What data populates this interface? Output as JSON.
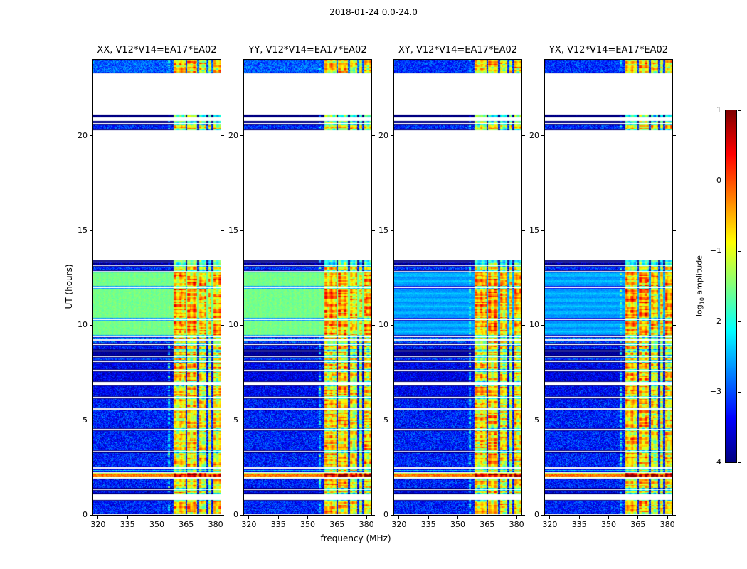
{
  "title": "2018-01-24 0.0-24.0",
  "colorbar": {
    "label_prefix": "log",
    "label_sub": "10",
    "label_suffix": " amplitude",
    "ticks": [
      "1",
      "0",
      "−1",
      "−2",
      "−3",
      "−4"
    ]
  },
  "chart_data": {
    "type": "heatmap",
    "title": "2018-01-24 0.0-24.0",
    "colormap": "jet",
    "panels": [
      {
        "title": "XX, V12*V14=EA17*EA02",
        "pol": "XX",
        "kind": "parallel"
      },
      {
        "title": "YY, V12*V14=EA17*EA02",
        "pol": "YY",
        "kind": "parallel"
      },
      {
        "title": "XY, V12*V14=EA17*EA02",
        "pol": "XY",
        "kind": "cross"
      },
      {
        "title": "YX, V12*V14=EA17*EA02",
        "pol": "YX",
        "kind": "cross"
      }
    ],
    "x": {
      "label": "frequency (MHz)",
      "units": "MHz",
      "range": [
        317.5,
        382.5
      ],
      "ticks": [
        320,
        335,
        350,
        365,
        380
      ]
    },
    "y": {
      "label": "UT (hours)",
      "units": "hours",
      "range": [
        0,
        24
      ],
      "ticks": [
        0,
        5,
        10,
        15,
        20
      ]
    },
    "value": {
      "label": "log10 amplitude",
      "range": [
        -4,
        1
      ]
    },
    "time_segments": [
      {
        "t0": 0.02,
        "t1": 0.8,
        "base": -3.25,
        "noise": 0.5
      },
      {
        "t0": 1.1,
        "t1": 1.3,
        "base": -3.4,
        "noise": 0.45
      },
      {
        "t0": 1.36,
        "t1": 1.92,
        "base": -3.25,
        "noise": 0.5
      },
      {
        "t0": 1.97,
        "t1": 2.22,
        "base": -0.2,
        "noise": 0.3,
        "boost": 1.5
      },
      {
        "t0": 2.26,
        "t1": 2.42,
        "base": -2.35,
        "noise": 0.35
      },
      {
        "t0": 2.5,
        "t1": 3.32,
        "base": -3.25,
        "noise": 0.5
      },
      {
        "t0": 3.38,
        "t1": 4.48,
        "base": -3.25,
        "noise": 0.5
      },
      {
        "t0": 4.54,
        "t1": 5.56,
        "base": -3.25,
        "noise": 0.5
      },
      {
        "t0": 5.62,
        "t1": 6.16,
        "base": -3.3,
        "noise": 0.5
      },
      {
        "t0": 6.22,
        "t1": 6.82,
        "base": -3.4,
        "noise": 0.45
      },
      {
        "t0": 7.02,
        "t1": 7.58,
        "base": -3.5,
        "noise": 0.4
      },
      {
        "t0": 7.64,
        "t1": 8.08,
        "base": -3.45,
        "noise": 0.45
      },
      {
        "t0": 8.14,
        "t1": 8.32,
        "base": -3.1,
        "noise": 0.45
      },
      {
        "t0": 8.38,
        "t1": 8.62,
        "base": -3.85,
        "noise": 0.15
      },
      {
        "t0": 8.68,
        "t1": 8.98,
        "base": -3.3,
        "noise": 0.5
      },
      {
        "t0": 9.04,
        "t1": 9.2,
        "base": -3.0,
        "noise": 0.5
      },
      {
        "t0": 9.26,
        "t1": 9.38,
        "base": -2.6,
        "noise": 0.4
      },
      {
        "t0": 9.44,
        "t1": 10.28,
        "base_par": -1.55,
        "base_cross": -2.55,
        "noise": 0.12,
        "boost": 0.25,
        "solar": true
      },
      {
        "t0": 10.34,
        "t1": 11.96,
        "base_par": -1.55,
        "base_cross": -2.55,
        "noise": 0.12,
        "boost": 0.25,
        "solar": true
      },
      {
        "t0": 12.02,
        "t1": 12.82,
        "base_par": -1.55,
        "base_cross": -2.55,
        "noise": 0.12,
        "boost": 0.25,
        "solar": true
      },
      {
        "t0": 12.88,
        "t1": 13.12,
        "base": -3.15,
        "noise": 0.5
      },
      {
        "t0": 13.18,
        "t1": 13.3,
        "base": -2.8,
        "noise": 0.45
      },
      {
        "t0": 13.34,
        "t1": 13.44,
        "base": -3.6,
        "noise": 0.3
      },
      {
        "t0": 20.3,
        "t1": 20.6,
        "base": -3.2,
        "noise": 0.5
      },
      {
        "t0": 20.66,
        "t1": 20.78,
        "base": -3.7,
        "noise": 0.3
      },
      {
        "t0": 20.98,
        "t1": 21.1,
        "base": -3.3,
        "noise": 0.45
      },
      {
        "t0": 23.28,
        "t1": 24.0,
        "base_par": -2.9,
        "base_cross": -3.15,
        "noise": 0.45
      }
    ],
    "rfi_bands": [
      {
        "f0": 355.6,
        "f1": 356.6,
        "amp": -2.1,
        "weak": true
      },
      {
        "f0": 358.6,
        "f1": 364.6,
        "amp": -0.75
      },
      {
        "f0": 365.6,
        "f1": 370.6,
        "amp": -0.65
      },
      {
        "f0": 371.6,
        "f1": 375.4,
        "amp": -0.95
      },
      {
        "f0": 376.4,
        "f1": 377.8,
        "amp": -1.25
      },
      {
        "f0": 378.8,
        "f1": 382.5,
        "amp": -0.8
      }
    ]
  }
}
